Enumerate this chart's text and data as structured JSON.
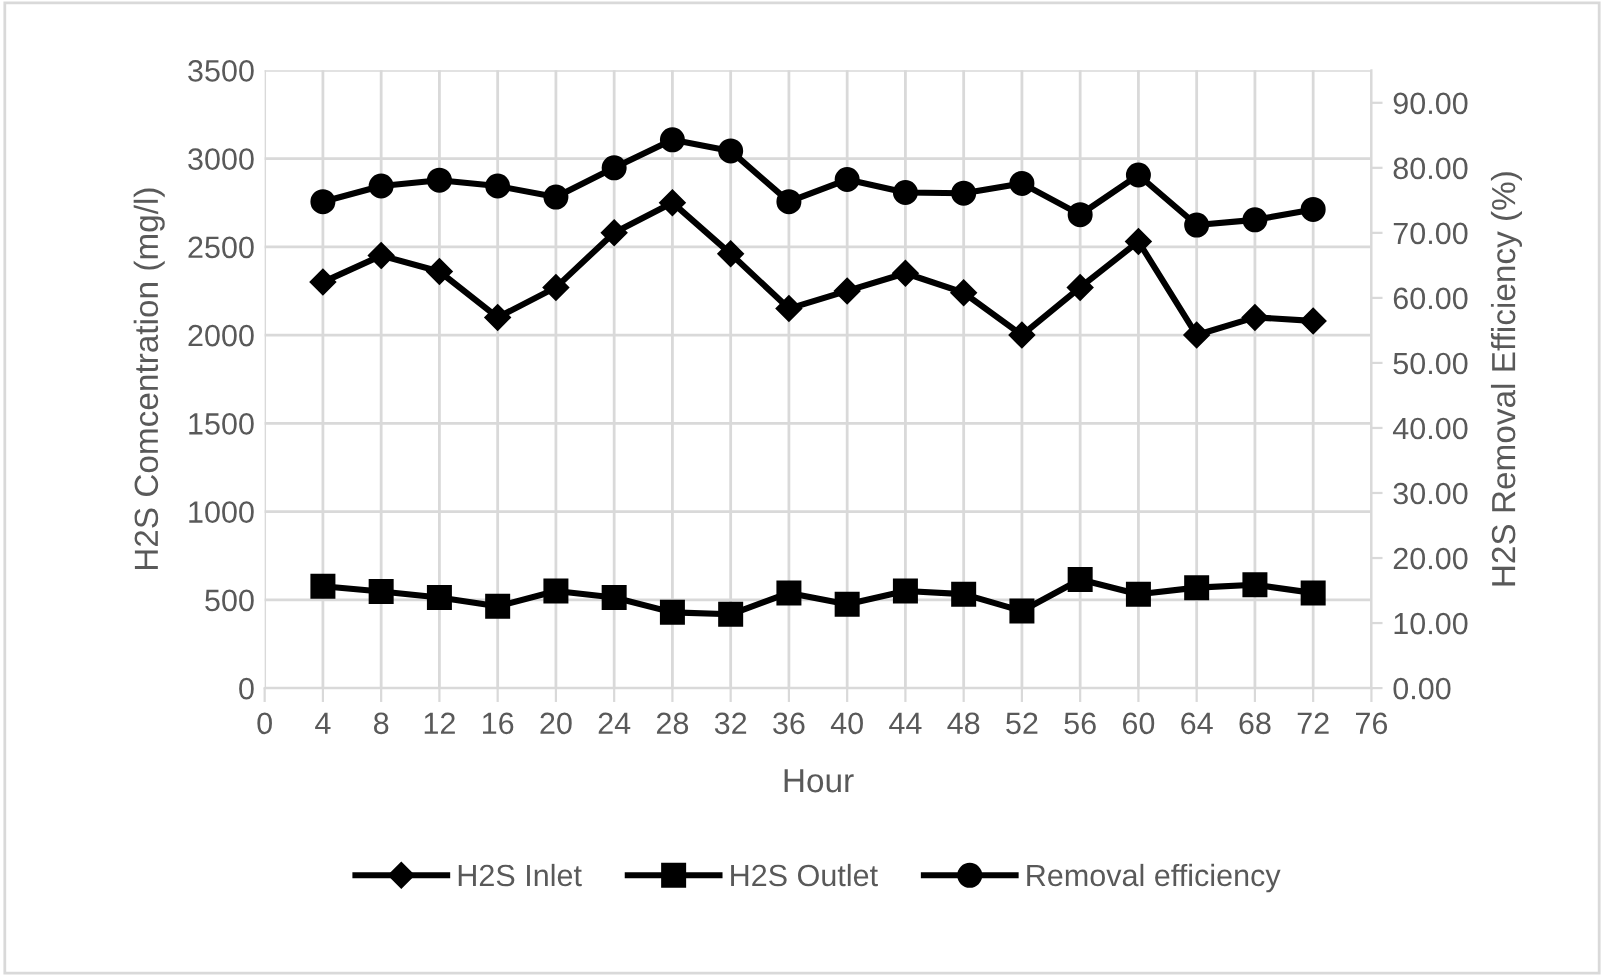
{
  "chart_data": {
    "type": "line",
    "xlabel": "Hour",
    "ylabel": "H2S Comcentration (mg/l)",
    "y2label": "H2S Removal Efficiency (%)",
    "x": [
      4,
      8,
      12,
      16,
      20,
      24,
      28,
      32,
      36,
      40,
      44,
      48,
      52,
      56,
      60,
      64,
      68,
      72
    ],
    "series": [
      {
        "name": "H2S Inlet",
        "color": "#000000",
        "marker": "diamond",
        "values": [
          2300,
          2450,
          2360,
          2100,
          2270,
          2580,
          2750,
          2460,
          2150,
          2250,
          2350,
          2240,
          2000,
          2270,
          2530,
          2000,
          2100,
          2080
        ]
      },
      {
        "name": "H2S Outlet",
        "color": "#000000",
        "marker": "square",
        "values": [
          577,
          547,
          513,
          463,
          550,
          513,
          429,
          418,
          539,
          475,
          550,
          532,
          437,
          615,
          532,
          569,
          585,
          539
        ]
      },
      {
        "name": "Removal efficiency",
        "color": "#000000",
        "marker": "circle",
        "axis": "y2",
        "values": [
          74.8,
          77.2,
          78.1,
          77.2,
          75.5,
          80.0,
          84.3,
          82.6,
          74.8,
          78.2,
          76.2,
          76.1,
          77.6,
          72.8,
          78.9,
          71.2,
          72.0,
          73.6
        ]
      }
    ],
    "xlim": [
      0,
      76
    ],
    "xticks": [
      0,
      4,
      8,
      12,
      16,
      20,
      24,
      28,
      32,
      36,
      40,
      44,
      48,
      52,
      56,
      60,
      64,
      68,
      72,
      76
    ],
    "ylim": [
      0,
      3500
    ],
    "yticks": [
      0,
      500,
      1000,
      1500,
      2000,
      2500,
      3000,
      3500
    ],
    "y2lim": [
      0,
      95
    ],
    "y2ticks": [
      {
        "value": 0,
        "label": "0.00"
      },
      {
        "value": 10,
        "label": "10.00"
      },
      {
        "value": 20,
        "label": "20.00"
      },
      {
        "value": 30,
        "label": "30.00"
      },
      {
        "value": 40,
        "label": "40.00"
      },
      {
        "value": 50,
        "label": "50.00"
      },
      {
        "value": 60,
        "label": "60.00"
      },
      {
        "value": 70,
        "label": "70.00"
      },
      {
        "value": 80,
        "label": "80.00"
      },
      {
        "value": 90,
        "label": "90.00"
      }
    ],
    "grid": true,
    "legend": "bottom",
    "line_style": "solid"
  }
}
